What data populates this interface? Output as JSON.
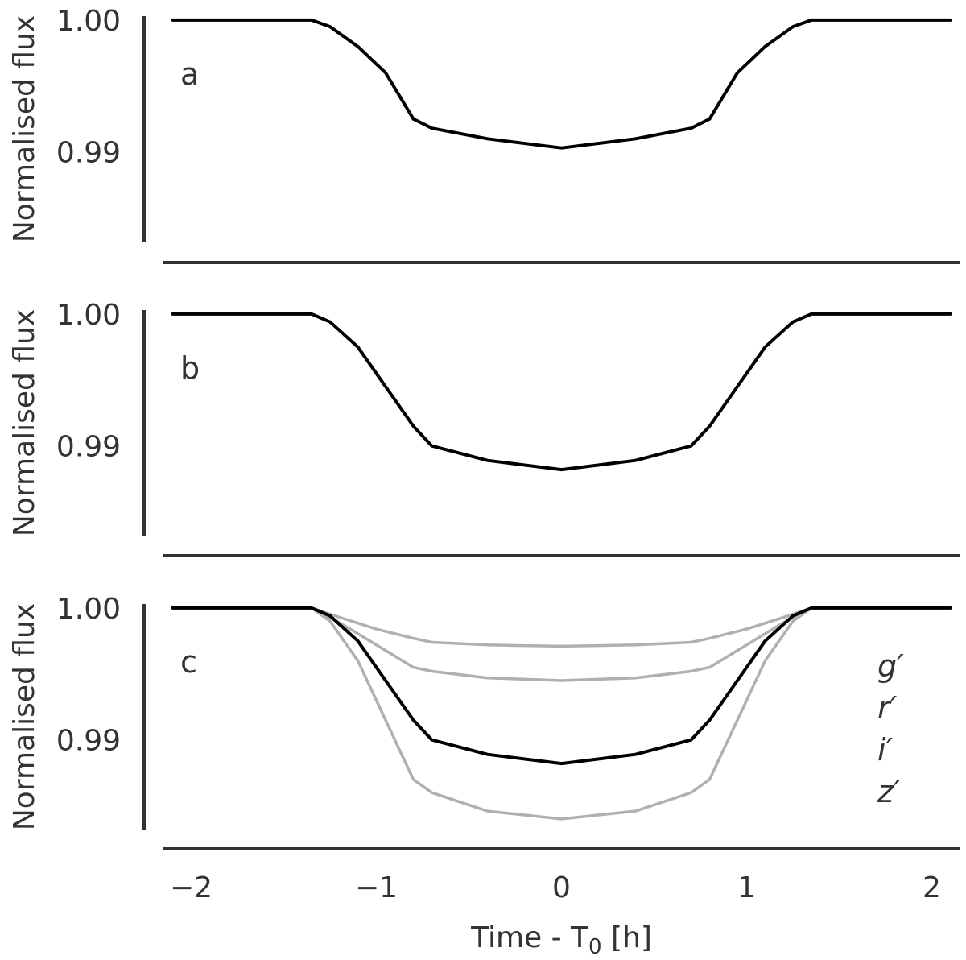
{
  "chart_data": [
    {
      "type": "line",
      "panel_label": "a",
      "xlim": [
        -2.15,
        2.15
      ],
      "ylim": [
        0.9832,
        1.0003
      ],
      "ylabel": "Normalised flux",
      "y_ticks": [
        {
          "value": 0.99,
          "label": "0.99"
        },
        {
          "value": 1.0,
          "label": "1.00"
        }
      ],
      "grid": false,
      "series": [
        {
          "color": "#000000",
          "points": [
            [
              -2.1,
              1.0
            ],
            [
              -1.35,
              1.0
            ],
            [
              -1.25,
              0.9995
            ],
            [
              -1.1,
              0.998
            ],
            [
              -0.95,
              0.996
            ],
            [
              -0.8,
              0.9925
            ],
            [
              -0.7,
              0.9918
            ],
            [
              -0.4,
              0.991
            ],
            [
              0,
              0.9903
            ],
            [
              0.4,
              0.991
            ],
            [
              0.7,
              0.9918
            ],
            [
              0.8,
              0.9925
            ],
            [
              0.95,
              0.996
            ],
            [
              1.1,
              0.998
            ],
            [
              1.25,
              0.9995
            ],
            [
              1.35,
              1.0
            ],
            [
              2.1,
              1.0
            ]
          ]
        }
      ]
    },
    {
      "type": "line",
      "panel_label": "b",
      "xlim": [
        -2.15,
        2.15
      ],
      "ylim": [
        0.9832,
        1.0003
      ],
      "ylabel": "Normalised flux",
      "y_ticks": [
        {
          "value": 0.99,
          "label": "0.99"
        },
        {
          "value": 1.0,
          "label": "1.00"
        }
      ],
      "grid": false,
      "series": [
        {
          "color": "#000000",
          "points": [
            [
              -2.1,
              1.0
            ],
            [
              -1.35,
              1.0
            ],
            [
              -1.25,
              0.9994
            ],
            [
              -1.1,
              0.9975
            ],
            [
              -0.95,
              0.9945
            ],
            [
              -0.8,
              0.9915
            ],
            [
              -0.7,
              0.99
            ],
            [
              -0.4,
              0.9889
            ],
            [
              0,
              0.9882
            ],
            [
              0.4,
              0.9889
            ],
            [
              0.7,
              0.99
            ],
            [
              0.8,
              0.9915
            ],
            [
              0.95,
              0.9945
            ],
            [
              1.1,
              0.9975
            ],
            [
              1.25,
              0.9994
            ],
            [
              1.35,
              1.0
            ],
            [
              2.1,
              1.0
            ]
          ]
        }
      ]
    },
    {
      "type": "line",
      "panel_label": "c",
      "xlim": [
        -2.15,
        2.15
      ],
      "ylim": [
        0.9832,
        1.0003
      ],
      "ylabel": "Normalised flux",
      "xlabel": "Time - T",
      "xlabel_subscript": "0",
      "xlabel_suffix": " [h]",
      "x_ticks": [
        {
          "value": -2,
          "label": "−2"
        },
        {
          "value": -1,
          "label": "−1"
        },
        {
          "value": 0,
          "label": "0"
        },
        {
          "value": 1,
          "label": "1"
        },
        {
          "value": 2,
          "label": "2"
        }
      ],
      "y_ticks": [
        {
          "value": 0.99,
          "label": "0.99"
        },
        {
          "value": 1.0,
          "label": "1.00"
        }
      ],
      "grid": false,
      "legend_position": "right",
      "band_labels": [
        "g′",
        "r′",
        "i′",
        "z′"
      ],
      "series": [
        {
          "color": "#b0b0b0",
          "points": [
            [
              -2.1,
              1.0
            ],
            [
              -1.35,
              1.0
            ],
            [
              -1.2,
              0.9993
            ],
            [
              -1.0,
              0.9984
            ],
            [
              -0.8,
              0.9977
            ],
            [
              -0.7,
              0.9974
            ],
            [
              -0.4,
              0.9972
            ],
            [
              0,
              0.9971
            ],
            [
              0.4,
              0.9972
            ],
            [
              0.7,
              0.9974
            ],
            [
              0.8,
              0.9977
            ],
            [
              1.0,
              0.9984
            ],
            [
              1.2,
              0.9993
            ],
            [
              1.35,
              1.0
            ],
            [
              2.1,
              1.0
            ]
          ]
        },
        {
          "color": "#b0b0b0",
          "points": [
            [
              -2.1,
              1.0
            ],
            [
              -1.35,
              1.0
            ],
            [
              -1.2,
              0.9989
            ],
            [
              -1.0,
              0.9972
            ],
            [
              -0.8,
              0.9955
            ],
            [
              -0.7,
              0.9952
            ],
            [
              -0.4,
              0.9947
            ],
            [
              0,
              0.9945
            ],
            [
              0.4,
              0.9947
            ],
            [
              0.7,
              0.9952
            ],
            [
              0.8,
              0.9955
            ],
            [
              1.0,
              0.9972
            ],
            [
              1.2,
              0.9989
            ],
            [
              1.35,
              1.0
            ],
            [
              2.1,
              1.0
            ]
          ]
        },
        {
          "color": "#b0b0b0",
          "points": [
            [
              -2.1,
              1.0
            ],
            [
              -1.35,
              1.0
            ],
            [
              -1.25,
              0.999
            ],
            [
              -1.1,
              0.996
            ],
            [
              -0.95,
              0.9915
            ],
            [
              -0.8,
              0.987
            ],
            [
              -0.7,
              0.986
            ],
            [
              -0.4,
              0.9846
            ],
            [
              0,
              0.984
            ],
            [
              0.4,
              0.9846
            ],
            [
              0.7,
              0.986
            ],
            [
              0.8,
              0.987
            ],
            [
              0.95,
              0.9915
            ],
            [
              1.1,
              0.996
            ],
            [
              1.25,
              0.999
            ],
            [
              1.35,
              1.0
            ],
            [
              2.1,
              1.0
            ]
          ]
        },
        {
          "color": "#000000",
          "points": [
            [
              -2.1,
              1.0
            ],
            [
              -1.35,
              1.0
            ],
            [
              -1.25,
              0.9994
            ],
            [
              -1.1,
              0.9975
            ],
            [
              -0.95,
              0.9945
            ],
            [
              -0.8,
              0.9915
            ],
            [
              -0.7,
              0.99
            ],
            [
              -0.4,
              0.9889
            ],
            [
              0,
              0.9882
            ],
            [
              0.4,
              0.9889
            ],
            [
              0.7,
              0.99
            ],
            [
              0.8,
              0.9915
            ],
            [
              0.95,
              0.9945
            ],
            [
              1.1,
              0.9975
            ],
            [
              1.25,
              0.9994
            ],
            [
              1.35,
              1.0
            ],
            [
              2.1,
              1.0
            ]
          ]
        }
      ]
    }
  ]
}
